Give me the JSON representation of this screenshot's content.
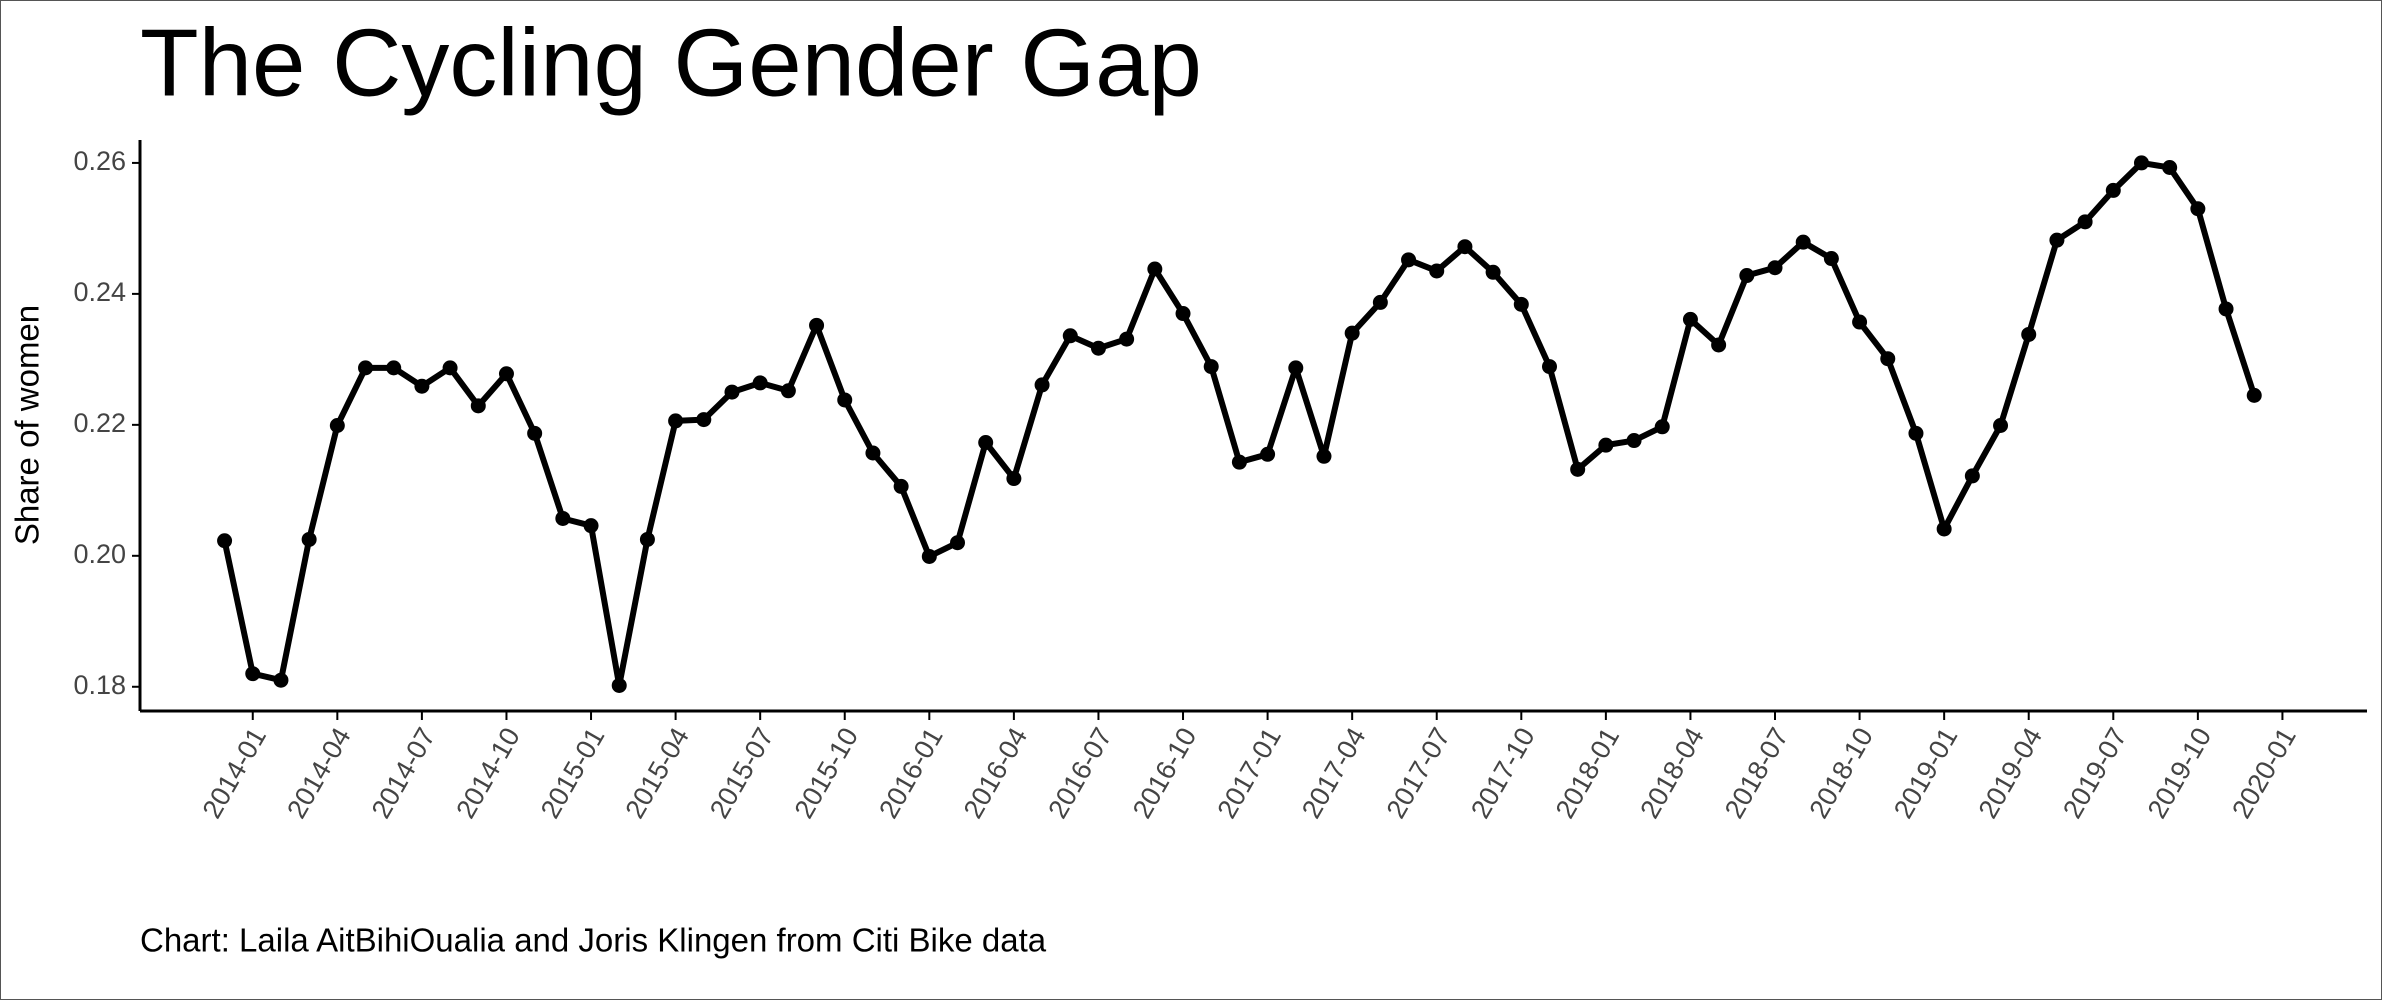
{
  "chart_data": {
    "type": "line",
    "title": "The Cycling Gender Gap",
    "y_label": "Share of women",
    "caption": "Chart: Laila AitBihiOualia and Joris Klingen from Citi Bike data",
    "x": [
      "2013-12",
      "2014-01",
      "2014-02",
      "2014-03",
      "2014-04",
      "2014-05",
      "2014-06",
      "2014-07",
      "2014-08",
      "2014-09",
      "2014-10",
      "2014-11",
      "2014-12",
      "2015-01",
      "2015-02",
      "2015-03",
      "2015-04",
      "2015-05",
      "2015-06",
      "2015-07",
      "2015-08",
      "2015-09",
      "2015-10",
      "2015-11",
      "2015-12",
      "2016-01",
      "2016-02",
      "2016-03",
      "2016-04",
      "2016-05",
      "2016-06",
      "2016-07",
      "2016-08",
      "2016-09",
      "2016-10",
      "2016-11",
      "2016-12",
      "2017-01",
      "2017-02",
      "2017-03",
      "2017-04",
      "2017-05",
      "2017-06",
      "2017-07",
      "2017-08",
      "2017-09",
      "2017-10",
      "2017-11",
      "2017-12",
      "2018-01",
      "2018-02",
      "2018-03",
      "2018-04",
      "2018-05",
      "2018-06",
      "2018-07",
      "2018-08",
      "2018-09",
      "2018-10",
      "2018-11",
      "2018-12",
      "2019-01",
      "2019-02",
      "2019-03",
      "2019-04",
      "2019-05",
      "2019-06",
      "2019-07",
      "2019-08",
      "2019-09",
      "2019-10",
      "2019-11",
      "2019-12"
    ],
    "series": [
      {
        "name": "Share of women",
        "color": "#000000",
        "values": [
          0.2023,
          0.182,
          0.181,
          0.2025,
          0.2199,
          0.2287,
          0.2287,
          0.2259,
          0.2287,
          0.2229,
          0.2278,
          0.2187,
          0.2057,
          0.2046,
          0.1802,
          0.2025,
          0.2206,
          0.2208,
          0.225,
          0.2264,
          0.2252,
          0.2352,
          0.2238,
          0.2157,
          0.2106,
          0.1999,
          0.202,
          0.2173,
          0.2118,
          0.2261,
          0.2336,
          0.2317,
          0.2331,
          0.2438,
          0.237,
          0.2289,
          0.2143,
          0.2155,
          0.2287,
          0.2152,
          0.234,
          0.2387,
          0.2452,
          0.2435,
          0.2472,
          0.2433,
          0.2384,
          0.2289,
          0.2132,
          0.2169,
          0.2176,
          0.2197,
          0.2361,
          0.2322,
          0.2428,
          0.244,
          0.2479,
          0.2454,
          0.2357,
          0.2301,
          0.2187,
          0.2041,
          0.2122,
          0.2199,
          0.2338,
          0.2482,
          0.251,
          0.2558,
          0.26,
          0.2593,
          0.253,
          0.2377,
          0.2245
        ]
      }
    ],
    "xlim": [
      "2013-09",
      "2020-04"
    ],
    "xticks": [
      "2014-01",
      "2014-04",
      "2014-07",
      "2014-10",
      "2015-01",
      "2015-04",
      "2015-07",
      "2015-10",
      "2016-01",
      "2016-04",
      "2016-07",
      "2016-10",
      "2017-01",
      "2017-04",
      "2017-07",
      "2017-10",
      "2018-01",
      "2018-04",
      "2018-07",
      "2018-10",
      "2019-01",
      "2019-04",
      "2019-07",
      "2019-10",
      "2020-01"
    ],
    "ylim": [
      0.1763,
      0.2635
    ],
    "yticks": [
      {
        "value": 0.18,
        "label": "0.18"
      },
      {
        "value": 0.2,
        "label": "0.20"
      },
      0.22,
      0.24,
      0.26
    ],
    "grid": false
  }
}
